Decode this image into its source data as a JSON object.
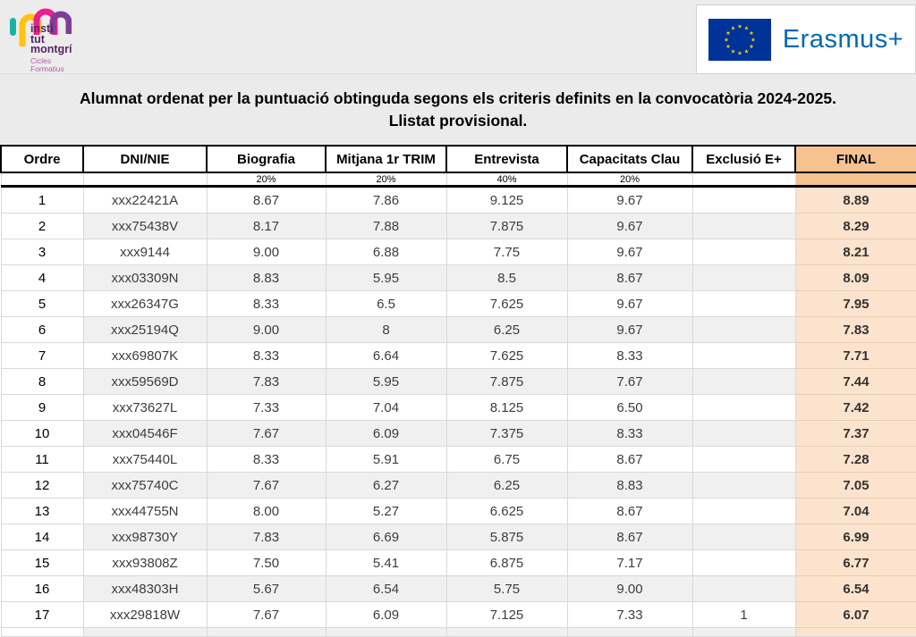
{
  "brand": {
    "logo_lines": [
      "insti",
      "tut",
      "montgrí"
    ],
    "logo_sub": [
      "Cicles",
      "Formatius"
    ]
  },
  "erasmus": {
    "label": "Erasmus+"
  },
  "title": {
    "line1": "Alumnat ordenat per la puntuació obtinguda segons els criteris definits en la convocatòria 2024-2025.",
    "line2": "Llistat provisional."
  },
  "table": {
    "columns": [
      {
        "key": "ordre",
        "label": "Ordre",
        "weight": ""
      },
      {
        "key": "dni",
        "label": "DNI/NIE",
        "weight": ""
      },
      {
        "key": "biografia",
        "label": "Biografia",
        "weight": "20%"
      },
      {
        "key": "mitjana",
        "label": "Mitjana 1r TRIM",
        "weight": "20%"
      },
      {
        "key": "entrevista",
        "label": "Entrevista",
        "weight": "40%"
      },
      {
        "key": "capacitats",
        "label": "Capacitats Clau",
        "weight": "20%"
      },
      {
        "key": "exclusio",
        "label": "Exclusió E+",
        "weight": ""
      },
      {
        "key": "final",
        "label": "FINAL",
        "weight": ""
      }
    ],
    "rows": [
      [
        "1",
        "xxx22421A",
        "8.67",
        "7.86",
        "9.125",
        "9.67",
        "",
        "8.89"
      ],
      [
        "2",
        "xxx75438V",
        "8.17",
        "7.88",
        "7.875",
        "9.67",
        "",
        "8.29"
      ],
      [
        "3",
        "xxx9144",
        "9.00",
        "6.88",
        "7.75",
        "9.67",
        "",
        "8.21"
      ],
      [
        "4",
        "xxx03309N",
        "8.83",
        "5.95",
        "8.5",
        "8.67",
        "",
        "8.09"
      ],
      [
        "5",
        "xxx26347G",
        "8.33",
        "6.5",
        "7.625",
        "9.67",
        "",
        "7.95"
      ],
      [
        "6",
        "xxx25194Q",
        "9.00",
        "8",
        "6.25",
        "9.67",
        "",
        "7.83"
      ],
      [
        "7",
        "xxx69807K",
        "8.33",
        "6.64",
        "7.625",
        "8.33",
        "",
        "7.71"
      ],
      [
        "8",
        "xxx59569D",
        "7.83",
        "5.95",
        "7.875",
        "7.67",
        "",
        "7.44"
      ],
      [
        "9",
        "xxx73627L",
        "7.33",
        "7.04",
        "8.125",
        "6.50",
        "",
        "7.42"
      ],
      [
        "10",
        "xxx04546F",
        "7.67",
        "6.09",
        "7.375",
        "8.33",
        "",
        "7.37"
      ],
      [
        "11",
        "xxx75440L",
        "8.33",
        "5.91",
        "6.75",
        "8.67",
        "",
        "7.28"
      ],
      [
        "12",
        "xxx75740C",
        "7.67",
        "6.27",
        "6.25",
        "8.83",
        "",
        "7.05"
      ],
      [
        "13",
        "xxx44755N",
        "8.00",
        "5.27",
        "6.625",
        "8.67",
        "",
        "7.04"
      ],
      [
        "14",
        "xxx98730Y",
        "7.83",
        "6.69",
        "5.875",
        "8.67",
        "",
        "6.99"
      ],
      [
        "15",
        "xxx93808Z",
        "7.50",
        "5.41",
        "6.875",
        "7.17",
        "",
        "6.77"
      ],
      [
        "16",
        "xxx48303H",
        "5.67",
        "6.54",
        "5.75",
        "9.00",
        "",
        "6.54"
      ],
      [
        "17",
        "xxx29818W",
        "7.67",
        "6.09",
        "7.125",
        "7.33",
        "1",
        "6.07"
      ]
    ]
  },
  "colors": {
    "final_header_bg": "#f6c290",
    "final_cell_bg": "#fbe3cd",
    "row_stripe": "#f0f0f0",
    "erasmus_blue": "#0069b4",
    "eu_flag_blue": "#003399",
    "eu_star_yellow": "#ffcc00"
  }
}
